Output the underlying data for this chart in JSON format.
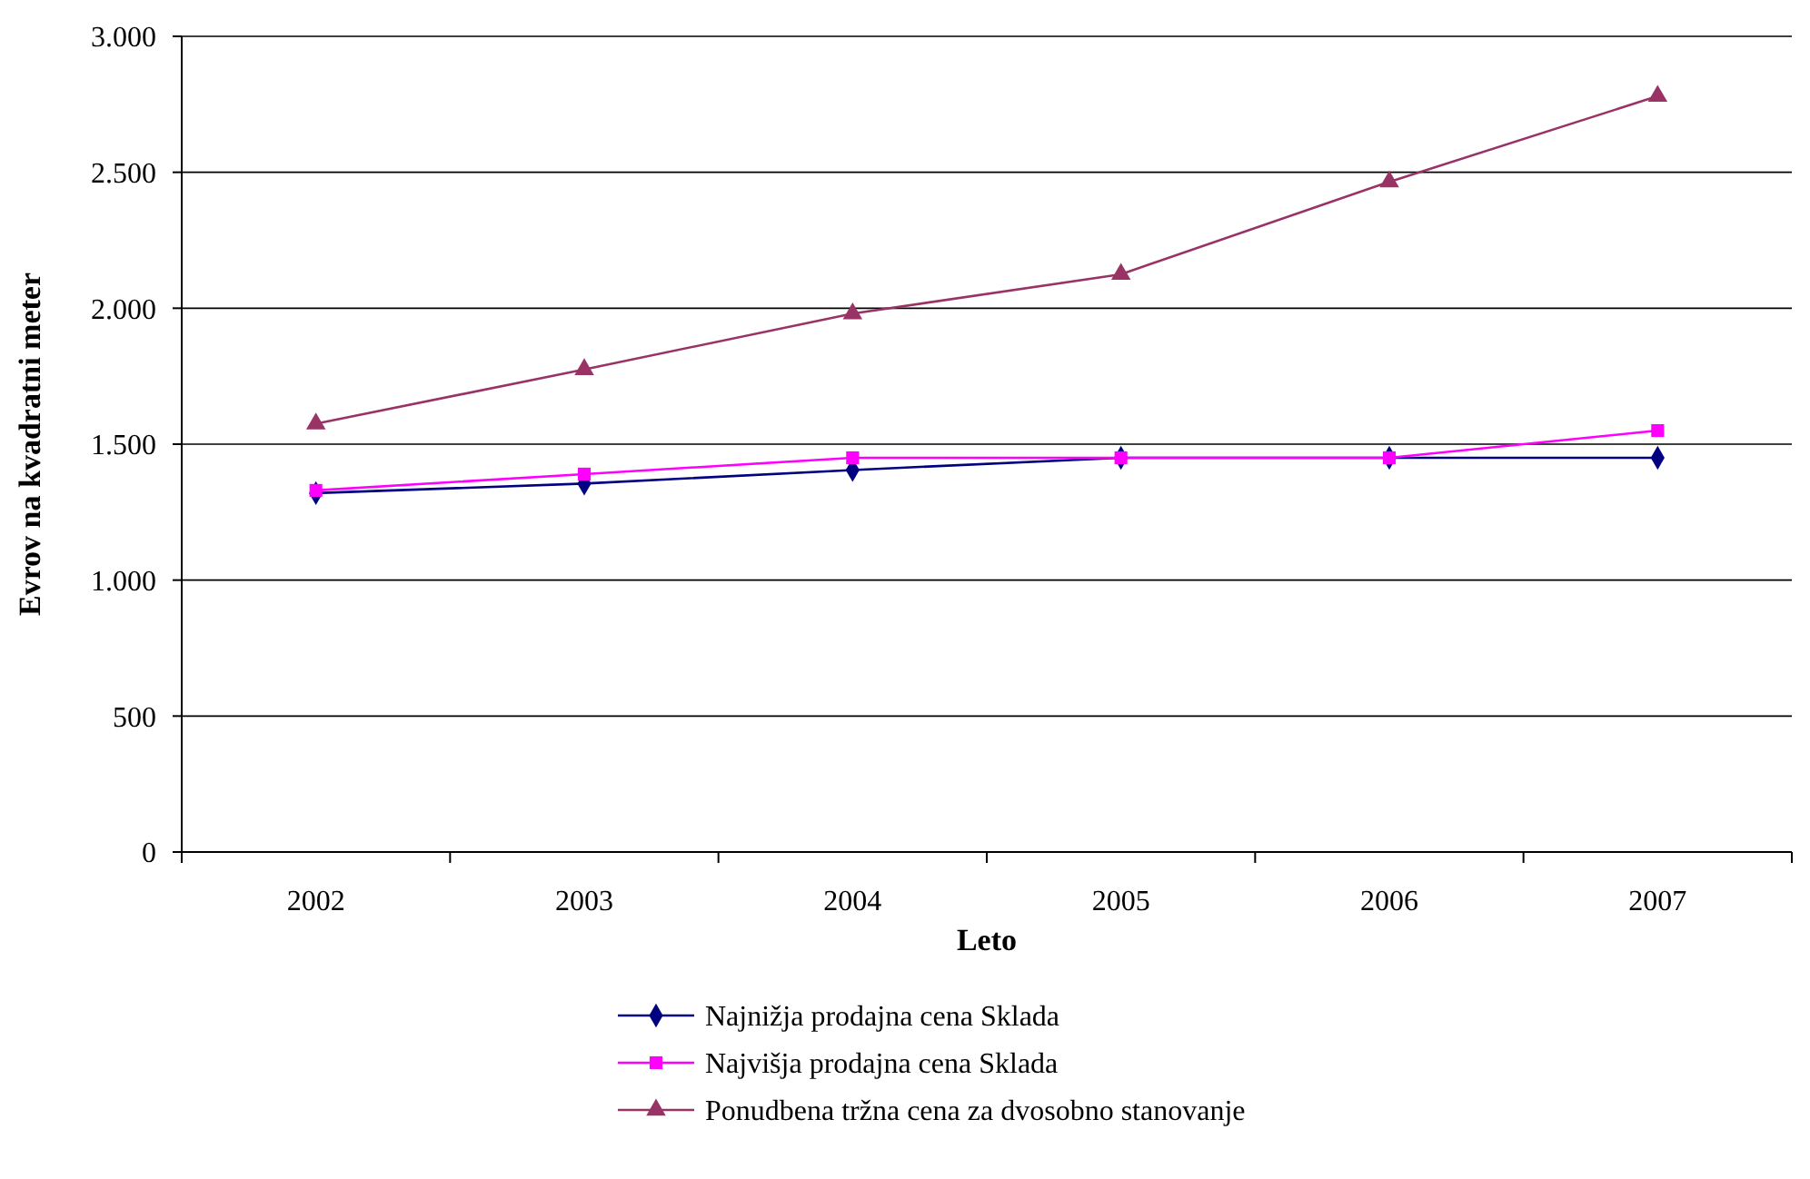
{
  "chart_data": {
    "type": "line",
    "xlabel": "Leto",
    "ylabel": "Evrov na kvadratni meter",
    "categories": [
      "2002",
      "2003",
      "2004",
      "2005",
      "2006",
      "2007"
    ],
    "series": [
      {
        "name": "Najnižja prodajna cena Sklada",
        "color": "#000080",
        "marker": "diamond",
        "values": [
          1320,
          1355,
          1405,
          1450,
          1450,
          1450
        ]
      },
      {
        "name": "Najvišja prodajna cena Sklada",
        "color": "#ff00ff",
        "marker": "square",
        "values": [
          1330,
          1390,
          1450,
          1450,
          1450,
          1550
        ]
      },
      {
        "name": "Ponudbena tržna cena za dvosobno stanovanje",
        "color": "#993366",
        "marker": "triangle",
        "values": [
          1575,
          1775,
          1980,
          2125,
          2465,
          2780
        ]
      }
    ],
    "ylim": [
      0,
      3000
    ],
    "yticks": [
      {
        "value": 0,
        "label": "0"
      },
      {
        "value": 500,
        "label": "500"
      },
      {
        "value": 1000,
        "label": "1.000"
      },
      {
        "value": 1500,
        "label": "1.500"
      },
      {
        "value": 2000,
        "label": "2.000"
      },
      {
        "value": 2500,
        "label": "2.500"
      },
      {
        "value": 3000,
        "label": "3.000"
      }
    ],
    "grid": "y",
    "legend": "bottom"
  }
}
